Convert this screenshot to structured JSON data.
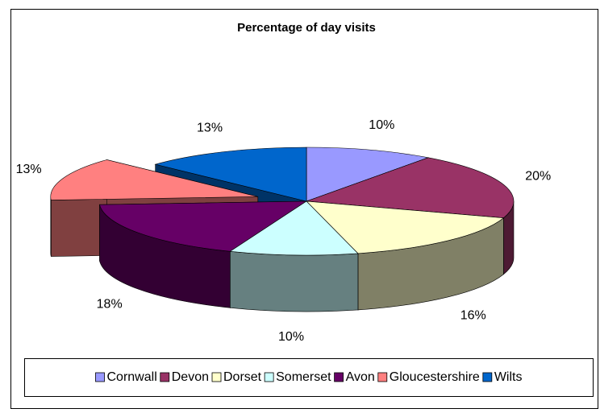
{
  "chart_data": {
    "type": "pie3d",
    "title": "Percentage of day visits",
    "categories": [
      "Cornwall",
      "Devon",
      "Dorset",
      "Somerset",
      "Avon",
      "Gloucestershire",
      "Wilts"
    ],
    "values": [
      10,
      20,
      16,
      10,
      18,
      13,
      13
    ],
    "value_labels": [
      "10%",
      "20%",
      "16%",
      "10%",
      "18%",
      "13%",
      "13%"
    ],
    "colors": [
      "#9999ff",
      "#993366",
      "#ffffcc",
      "#ccffff",
      "#660066",
      "#ff8080",
      "#0066cc"
    ],
    "exploded": "Gloucestershire",
    "legend": "bottom"
  }
}
